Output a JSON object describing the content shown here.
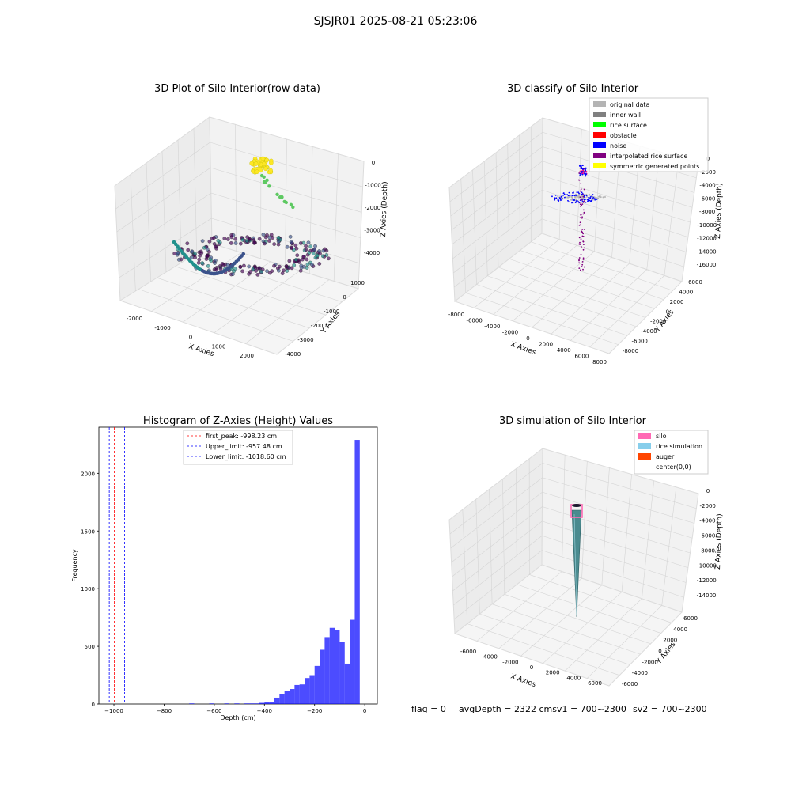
{
  "figure": {
    "suptitle": "SJSJR01 2025-08-21 05:23:06",
    "footer": {
      "flag": "flag = 0",
      "avg": "avgDepth = 2322 cmsv1 = 700~2300",
      "sv2": "sv2 = 700~2300"
    }
  },
  "chart_data": [
    {
      "type": "scatter",
      "title": "3D Plot of Silo Interior(row data)",
      "xlabel": "X Axies",
      "ylabel": "Y Axies",
      "zlabel": "Z Axies (Depth)",
      "x_ticks": [
        "-2000",
        "-1000",
        "0",
        "1000",
        "2000"
      ],
      "y_ticks": [
        "1000",
        "0",
        "-1000",
        "-2000",
        "-3000",
        "-4000"
      ],
      "z_ticks": [
        "0",
        "-1000",
        "-2000",
        "-3000",
        "-4000"
      ],
      "colormap": [
        "#440154",
        "#3b528b",
        "#21918c",
        "#5ec962",
        "#fde725"
      ]
    },
    {
      "type": "scatter",
      "title": "3D classify of Silo Interior",
      "xlabel": "X Axies",
      "ylabel": "Y Axies",
      "zlabel": "Z Axies (Depth)",
      "x_ticks": [
        "-8000",
        "-6000",
        "-4000",
        "-2000",
        "0",
        "2000",
        "4000",
        "6000",
        "8000"
      ],
      "y_ticks": [
        "6000",
        "4000",
        "2000",
        "0",
        "-2000",
        "-4000",
        "-6000",
        "-8000"
      ],
      "z_ticks": [
        "0",
        "-2000",
        "-4000",
        "-6000",
        "-8000",
        "-10000",
        "-12000",
        "-14000",
        "-16000"
      ],
      "legend_position": "top-right",
      "legend": [
        {
          "label": "original data",
          "color": "#b4b4b4"
        },
        {
          "label": "inner wall",
          "color": "#808080"
        },
        {
          "label": "rice surface",
          "color": "#00ff00"
        },
        {
          "label": "obstacle",
          "color": "#ff0000"
        },
        {
          "label": "noise",
          "color": "#0000ff"
        },
        {
          "label": "interpolated rice surface",
          "color": "#800080"
        },
        {
          "label": "symmetric generated points",
          "color": "#ffff00"
        }
      ]
    },
    {
      "type": "bar",
      "title": "Histogram of Z-Axies (Height) Values",
      "xlabel": "Depth (cm)",
      "ylabel": "Frequency",
      "xlim": [
        -1060,
        50
      ],
      "ylim": [
        0,
        2400
      ],
      "x_ticks": [
        -1000,
        -800,
        -600,
        -400,
        -200,
        0
      ],
      "y_ticks": [
        0,
        500,
        1000,
        1500,
        2000
      ],
      "bar_color": "#0000ff",
      "bin_width": 20,
      "bins": [
        {
          "x": -700,
          "value": 5
        },
        {
          "x": -620,
          "value": 5
        },
        {
          "x": -560,
          "value": 5
        },
        {
          "x": -520,
          "value": 5
        },
        {
          "x": -480,
          "value": 5
        },
        {
          "x": -460,
          "value": 5
        },
        {
          "x": -440,
          "value": 5
        },
        {
          "x": -420,
          "value": 10
        },
        {
          "x": -400,
          "value": 15
        },
        {
          "x": -380,
          "value": 20
        },
        {
          "x": -360,
          "value": 55
        },
        {
          "x": -340,
          "value": 85
        },
        {
          "x": -320,
          "value": 110
        },
        {
          "x": -300,
          "value": 130
        },
        {
          "x": -280,
          "value": 165
        },
        {
          "x": -260,
          "value": 170
        },
        {
          "x": -240,
          "value": 225
        },
        {
          "x": -220,
          "value": 250
        },
        {
          "x": -200,
          "value": 330
        },
        {
          "x": -180,
          "value": 470
        },
        {
          "x": -160,
          "value": 580
        },
        {
          "x": -140,
          "value": 660
        },
        {
          "x": -120,
          "value": 640
        },
        {
          "x": -100,
          "value": 540
        },
        {
          "x": -80,
          "value": 350
        },
        {
          "x": -60,
          "value": 730
        },
        {
          "x": -40,
          "value": 2290
        }
      ],
      "vlines": [
        {
          "label": "first_peak: -998.23 cm",
          "value": -998.23,
          "color": "#ff0000"
        },
        {
          "label": "Upper_limit: -957.48 cm",
          "value": -957.48,
          "color": "#0000ff"
        },
        {
          "label": "Lower_limit: -1018.60 cm",
          "value": -1018.6,
          "color": "#0000ff"
        }
      ],
      "legend_position": "top-center"
    },
    {
      "type": "scatter",
      "title": "3D simulation of Silo Interior",
      "xlabel": "X Axies",
      "ylabel": "Y Axies",
      "zlabel": "Z Axies (Depth)",
      "x_ticks": [
        "-6000",
        "-4000",
        "-2000",
        "0",
        "2000",
        "4000",
        "6000"
      ],
      "y_ticks": [
        "6000",
        "4000",
        "2000",
        "0",
        "-2000",
        "-4000",
        "-6000"
      ],
      "z_ticks": [
        "0",
        "-2000",
        "-4000",
        "-6000",
        "-8000",
        "-10000",
        "-12000",
        "-14000"
      ],
      "legend_position": "top-right",
      "legend": [
        {
          "label": "silo",
          "color": "#ff69b4"
        },
        {
          "label": "rice simulation",
          "color": "#87ceeb"
        },
        {
          "label": "auger",
          "color": "#ff4500"
        },
        {
          "label": "center(0,0)",
          "color": "#ffffff"
        }
      ]
    }
  ]
}
